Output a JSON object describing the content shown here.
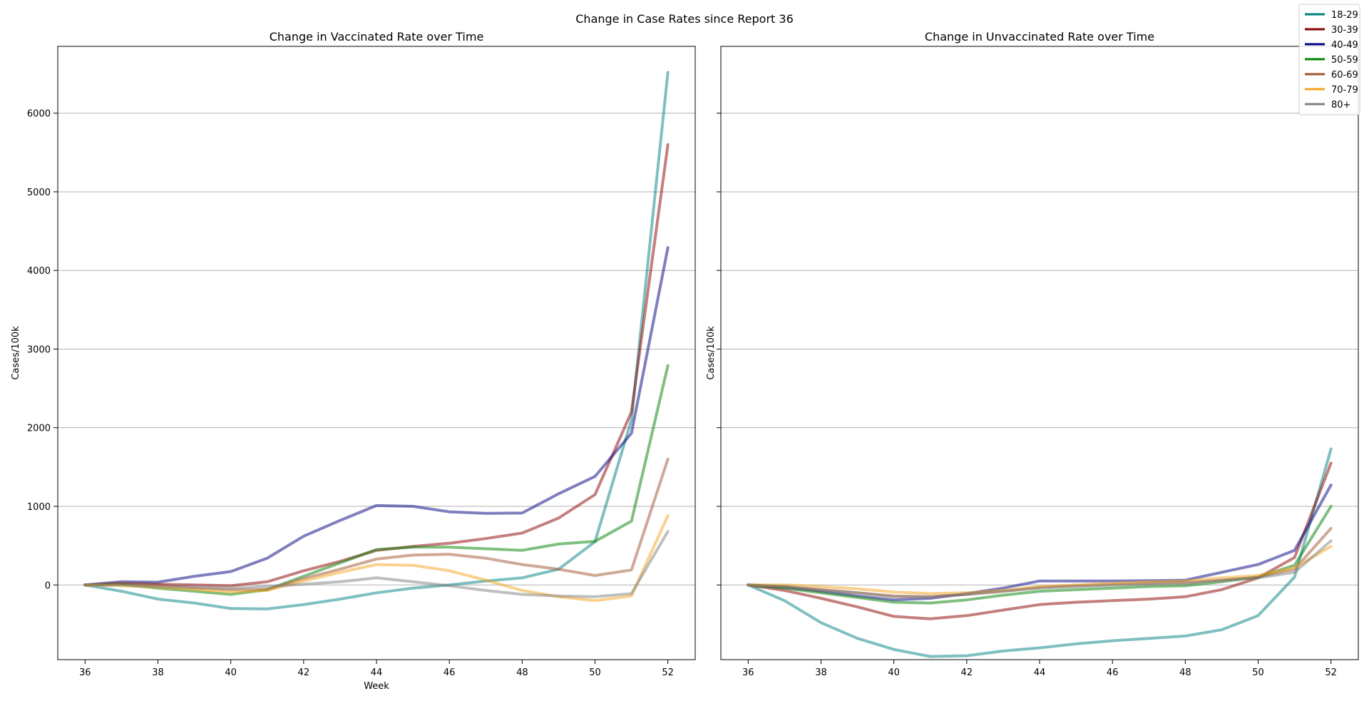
{
  "suptitle": "Change in Case Rates since Report 36",
  "legend": {
    "placement": "top-right",
    "entries": [
      {
        "label": "18-29",
        "color": "#008080"
      },
      {
        "label": "30-39",
        "color": "#8b0000"
      },
      {
        "label": "40-49",
        "color": "#000080"
      },
      {
        "label": "50-59",
        "color": "#008000"
      },
      {
        "label": "60-69",
        "color": "#a0522d"
      },
      {
        "label": "70-79",
        "color": "#f4a31a"
      },
      {
        "label": "80+",
        "color": "#808080"
      }
    ]
  },
  "chart_data": [
    {
      "type": "line",
      "title": "Change in Vaccinated Rate over Time",
      "xlabel": "Week",
      "ylabel": "Cases/100k",
      "xlim": [
        35.25,
        52.75
      ],
      "ylim": [
        -950,
        6850
      ],
      "xticks": [
        36,
        38,
        40,
        42,
        44,
        46,
        48,
        50,
        52
      ],
      "yticks": [
        0,
        1000,
        2000,
        3000,
        4000,
        5000,
        6000
      ],
      "grid": "y",
      "x": [
        36,
        37,
        38,
        39,
        40,
        41,
        42,
        43,
        44,
        45,
        46,
        47,
        48,
        49,
        50,
        51,
        52
      ],
      "series": [
        {
          "name": "18-29",
          "values": [
            0,
            -80,
            -180,
            -230,
            -300,
            -305,
            -250,
            -180,
            -100,
            -40,
            0,
            50,
            90,
            200,
            550,
            2100,
            6520
          ]
        },
        {
          "name": "30-39",
          "values": [
            0,
            20,
            10,
            0,
            -10,
            40,
            180,
            300,
            440,
            490,
            530,
            590,
            660,
            850,
            1150,
            2200,
            5600
          ]
        },
        {
          "name": "40-49",
          "values": [
            0,
            40,
            35,
            110,
            170,
            340,
            620,
            820,
            1010,
            1000,
            930,
            910,
            915,
            1160,
            1380,
            1930,
            4290
          ]
        },
        {
          "name": "50-59",
          "values": [
            0,
            10,
            -40,
            -80,
            -120,
            -60,
            110,
            280,
            450,
            480,
            480,
            460,
            440,
            520,
            555,
            810,
            2790
          ]
        },
        {
          "name": "60-69",
          "values": [
            0,
            20,
            0,
            -40,
            -60,
            -60,
            80,
            200,
            330,
            380,
            390,
            340,
            260,
            200,
            120,
            190,
            1600
          ]
        },
        {
          "name": "70-79",
          "values": [
            0,
            -10,
            -30,
            -60,
            -90,
            -70,
            50,
            160,
            260,
            250,
            180,
            60,
            -70,
            -150,
            -200,
            -140,
            880
          ]
        },
        {
          "name": "80+",
          "values": [
            0,
            0,
            -20,
            -30,
            -40,
            -20,
            10,
            40,
            90,
            40,
            -10,
            -70,
            -120,
            -140,
            -150,
            -110,
            680
          ]
        }
      ]
    },
    {
      "type": "line",
      "title": "Change in Unvaccinated Rate over Time",
      "xlabel": "",
      "ylabel": "Cases/100k",
      "xlim": [
        35.25,
        52.75
      ],
      "ylim": [
        -950,
        6850
      ],
      "xticks": [
        36,
        38,
        40,
        42,
        44,
        46,
        48,
        50,
        52
      ],
      "yticks": [
        0,
        1000,
        2000,
        3000,
        4000,
        5000,
        6000
      ],
      "grid": "y",
      "x": [
        36,
        37,
        38,
        39,
        40,
        41,
        42,
        43,
        44,
        45,
        46,
        47,
        48,
        49,
        50,
        51,
        52
      ],
      "series": [
        {
          "name": "18-29",
          "values": [
            0,
            -200,
            -480,
            -680,
            -820,
            -910,
            -900,
            -840,
            -800,
            -750,
            -710,
            -680,
            -650,
            -570,
            -390,
            100,
            1730
          ]
        },
        {
          "name": "30-39",
          "values": [
            0,
            -70,
            -170,
            -280,
            -400,
            -430,
            -390,
            -320,
            -250,
            -220,
            -200,
            -180,
            -150,
            -60,
            90,
            350,
            1550
          ]
        },
        {
          "name": "40-49",
          "values": [
            0,
            -30,
            -80,
            -140,
            -190,
            -170,
            -110,
            -40,
            50,
            50,
            50,
            55,
            60,
            160,
            260,
            440,
            1270
          ]
        },
        {
          "name": "50-59",
          "values": [
            0,
            -40,
            -100,
            -160,
            -220,
            -230,
            -190,
            -130,
            -80,
            -60,
            -40,
            -20,
            -10,
            40,
            100,
            250,
            1000
          ]
        },
        {
          "name": "60-69",
          "values": [
            0,
            -20,
            -60,
            -100,
            -140,
            -150,
            -120,
            -80,
            -30,
            -10,
            10,
            20,
            30,
            60,
            100,
            200,
            720
          ]
        },
        {
          "name": "70-79",
          "values": [
            0,
            0,
            -20,
            -50,
            -90,
            -110,
            -100,
            -70,
            -20,
            0,
            20,
            40,
            50,
            90,
            120,
            220,
            490
          ]
        },
        {
          "name": "80+",
          "values": [
            0,
            -20,
            -60,
            -100,
            -150,
            -150,
            -120,
            -80,
            -40,
            -20,
            -5,
            10,
            20,
            60,
            90,
            160,
            560
          ]
        }
      ]
    }
  ]
}
